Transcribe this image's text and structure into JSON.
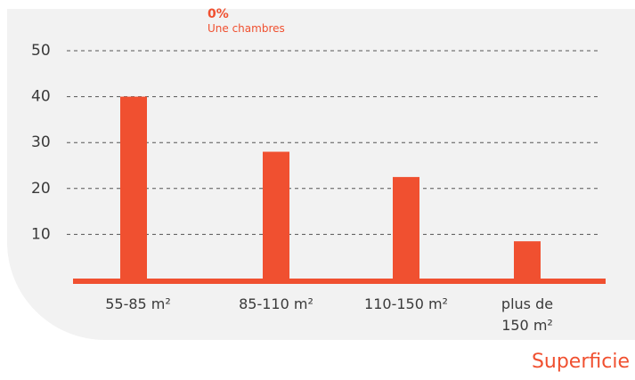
{
  "chart_data": {
    "type": "bar",
    "categories": [
      "55-85 m²",
      "85-110 m²",
      "110-150 m²",
      "plus de 150 m²"
    ],
    "category_lines": [
      [
        "55-85 m²"
      ],
      [
        "85-110 m²"
      ],
      [
        "110-150 m²"
      ],
      [
        "plus de",
        "150 m²"
      ]
    ],
    "values": [
      40,
      28,
      22.5,
      8.5
    ],
    "yticks": [
      10,
      20,
      30,
      40,
      50
    ],
    "ylim": [
      0,
      50
    ],
    "xlabel": "Superficie",
    "ylabel": "",
    "grid": true,
    "color": "#f05030",
    "annotation": {
      "value": "0%",
      "label": "Une chambres"
    }
  }
}
